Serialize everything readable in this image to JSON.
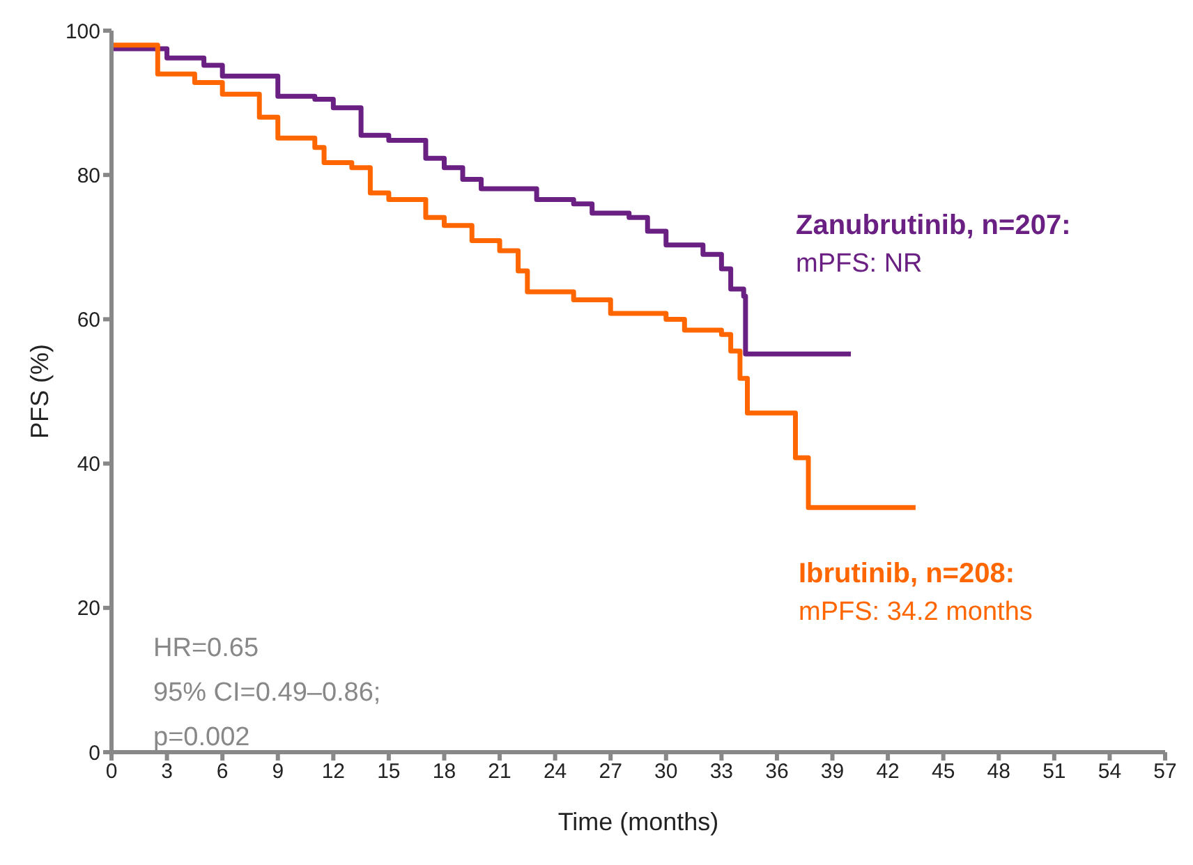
{
  "chart_data": {
    "type": "step",
    "xlabel": "Time (months)",
    "ylabel": "PFS (%)",
    "xlim": [
      0,
      57
    ],
    "xticks": [
      0,
      3,
      6,
      9,
      12,
      15,
      18,
      21,
      24,
      27,
      30,
      33,
      36,
      39,
      42,
      45,
      48,
      51,
      54,
      57
    ],
    "ylim": [
      0,
      100
    ],
    "yticks": [
      0,
      20,
      40,
      60,
      80,
      100
    ],
    "marker": "none",
    "line_style": "solid",
    "series": [
      {
        "name": "Zanubrutinib, n=207:",
        "color": "#6a1f82",
        "x": [
          0,
          3,
          5,
          6,
          9,
          11,
          12,
          13.5,
          15,
          17,
          18,
          19,
          20,
          22,
          23,
          25,
          26,
          28,
          29,
          30,
          32,
          33,
          33.5,
          34.2,
          34.3,
          40
        ],
        "values": [
          97.5,
          96.2,
          95.2,
          93.7,
          90.9,
          90.5,
          89.3,
          85.5,
          84.8,
          82.3,
          81,
          79.4,
          78.1,
          78.1,
          76.6,
          76,
          74.7,
          74.1,
          72.2,
          70.3,
          69,
          67,
          64.2,
          63.2,
          55.2,
          55.2
        ]
      },
      {
        "name": "Ibrutinib, n=208:",
        "color": "#ff6600",
        "x": [
          0,
          2.5,
          4.5,
          6,
          8,
          9,
          11,
          11.5,
          13,
          14,
          15,
          17,
          18,
          19.5,
          21,
          22,
          22.5,
          25,
          27,
          30,
          31,
          33,
          33.5,
          34,
          34.4,
          37,
          37.7,
          43.5
        ],
        "values": [
          98,
          94,
          92.8,
          91.2,
          88,
          85.1,
          83.8,
          81.7,
          81,
          77.5,
          76.6,
          74.1,
          73,
          70.9,
          69.5,
          66.7,
          63.8,
          62.7,
          60.8,
          60,
          58.5,
          57.9,
          55.6,
          51.8,
          47,
          40.8,
          33.9,
          33.9
        ]
      }
    ],
    "annotations": [
      "mPFS: NR",
      "mPFS: 34.2 months",
      "HR=0.65",
      "95% CI=0.49–0.86;",
      "p=0.002"
    ]
  }
}
